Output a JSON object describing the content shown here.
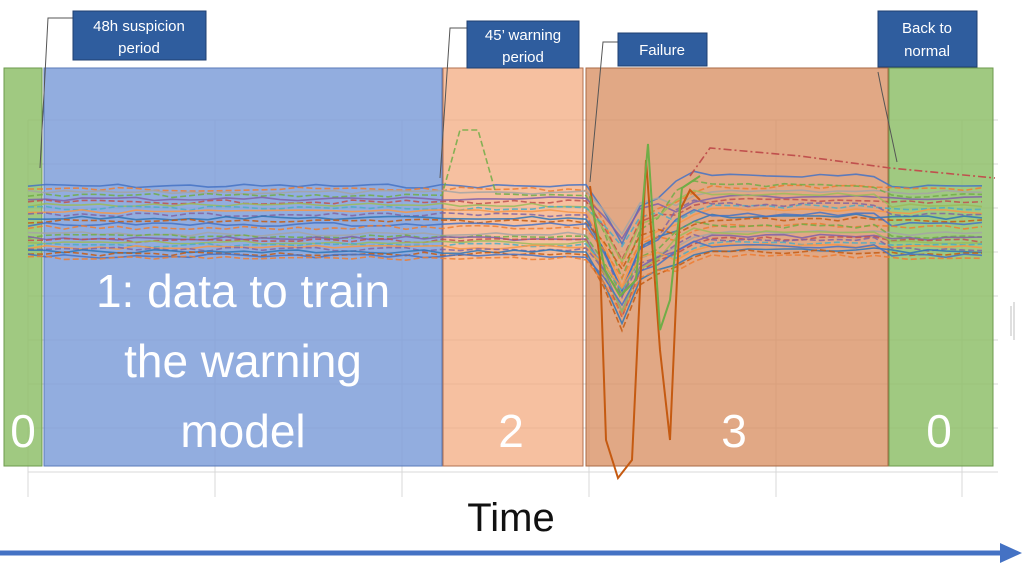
{
  "colors": {
    "normal": "#8fc06b",
    "suspicion": "#7f9fd9",
    "warning": "#f2a87b",
    "failure": "#d98f63",
    "callout": "#2f5d9e",
    "axis_arrow": "#4472c4"
  },
  "regions": [
    {
      "key": "normal_start",
      "label": "0",
      "color": "normal"
    },
    {
      "key": "suspicion",
      "label_lines": [
        "1: data to train",
        "the warning",
        "model"
      ],
      "color": "suspicion"
    },
    {
      "key": "warning",
      "label": "2",
      "color": "warning"
    },
    {
      "key": "failure",
      "label": "3",
      "color": "failure"
    },
    {
      "key": "normal_end",
      "label": "0",
      "color": "normal"
    }
  ],
  "callouts": [
    {
      "key": "suspicion",
      "lines": [
        "48h suspicion",
        "period"
      ]
    },
    {
      "key": "warning",
      "lines": [
        "45’ warning",
        "period"
      ]
    },
    {
      "key": "failure",
      "lines": [
        "Failure"
      ]
    },
    {
      "key": "normal",
      "lines": [
        "Back to",
        "normal"
      ]
    }
  ],
  "chart_data": {
    "type": "line",
    "title": "",
    "xlabel": "Time",
    "ylabel": "",
    "grid": true,
    "legend": "none",
    "note": "Many overlaid sensor traces; stable during periods 0/1, brief spike in 2, sharp dip in 3, recovery after."
  }
}
